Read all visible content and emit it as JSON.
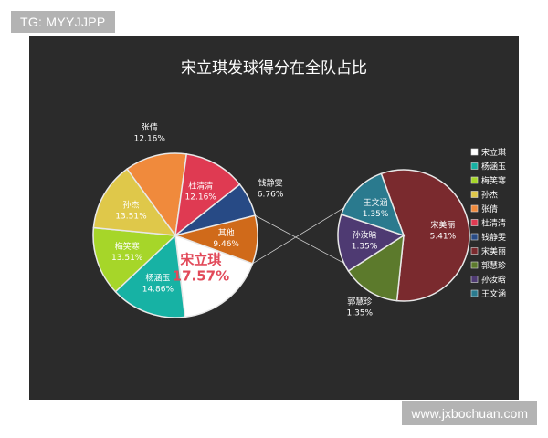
{
  "tag_text": "TG: MYYJJPP",
  "watermark_text": "www.jxbochuan.com",
  "chart_data": {
    "type": "pie",
    "title": "宋立琪发球得分在全队占比",
    "main_pie": [
      {
        "name": "宋立琪",
        "label": "宋立琪",
        "pct": "17.57%",
        "value": 17.57,
        "color": "#ffffff"
      },
      {
        "name": "杨涵玉",
        "label": "杨涵玉",
        "pct": "14.86%",
        "value": 14.86,
        "color": "#17b2a4"
      },
      {
        "name": "梅笑寒",
        "label": "梅笑寒",
        "pct": "13.51%",
        "value": 13.51,
        "color": "#a6d629"
      },
      {
        "name": "孙杰",
        "label": "孙杰",
        "pct": "13.51%",
        "value": 13.51,
        "color": "#dfc84a"
      },
      {
        "name": "张倩",
        "label": "张倩",
        "pct": "12.16%",
        "value": 12.16,
        "color": "#f08a3c"
      },
      {
        "name": "杜清清",
        "label": "杜清清",
        "pct": "12.16%",
        "value": 12.16,
        "color": "#df3a52"
      },
      {
        "name": "钱静雯",
        "label": "钱静雯",
        "pct": "6.76%",
        "value": 6.76,
        "color": "#274a85"
      },
      {
        "name": "其他",
        "label": "其他",
        "pct": "9.46%",
        "value": 9.46,
        "color": "#d06a1a"
      }
    ],
    "sub_pie": [
      {
        "name": "宋美丽",
        "label": "宋美丽",
        "pct": "5.41%",
        "value": 5.41,
        "color": "#7a2a2e"
      },
      {
        "name": "郭慧珍",
        "label": "郭慧珍",
        "pct": "1.35%",
        "value": 1.35,
        "color": "#5c7a2c"
      },
      {
        "name": "孙汝晗",
        "label": "孙汝晗",
        "pct": "1.35%",
        "value": 1.35,
        "color": "#4e3a72"
      },
      {
        "name": "王文涵",
        "label": "王文涵",
        "pct": "1.35%",
        "value": 1.35,
        "color": "#2a7a8e"
      }
    ],
    "legend": [
      {
        "label": "宋立琪",
        "color": "#ffffff"
      },
      {
        "label": "杨涵玉",
        "color": "#17b2a4"
      },
      {
        "label": "梅笑寒",
        "color": "#a6d629"
      },
      {
        "label": "孙杰",
        "color": "#dfc84a"
      },
      {
        "label": "张倩",
        "color": "#f08a3c"
      },
      {
        "label": "杜清清",
        "color": "#df3a52"
      },
      {
        "label": "钱静雯",
        "color": "#274a85"
      },
      {
        "label": "宋美丽",
        "color": "#7a2a2e"
      },
      {
        "label": "郭慧珍",
        "color": "#5c7a2c"
      },
      {
        "label": "孙汝晗",
        "color": "#4e3a72"
      },
      {
        "label": "王文涵",
        "color": "#2a7a8e"
      }
    ],
    "legend_position": "right",
    "grid": false
  }
}
